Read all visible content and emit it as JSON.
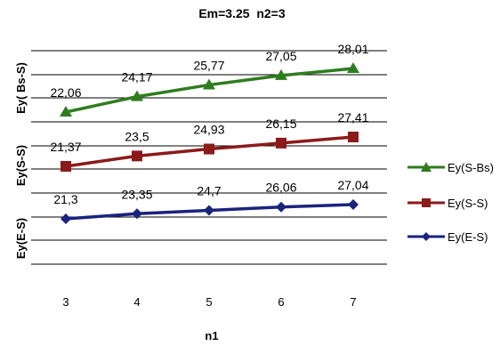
{
  "chart_data": {
    "type": "line",
    "title": "Em=3.25  n2=3",
    "xlabel": "n1",
    "ylabels": [
      "Ey( Bs-S)",
      "Ey(S-S)",
      "Ey(E-S)"
    ],
    "x": [
      3,
      4,
      5,
      6,
      7
    ],
    "series": [
      {
        "name": "Ey(S-Bs)",
        "values": [
          22.06,
          24.17,
          25.77,
          27.05,
          28.01
        ],
        "labels": [
          "22,06",
          "24,17",
          "25,77",
          "27,05",
          "28,01"
        ],
        "color": "#2e7d1f",
        "marker": "triangle"
      },
      {
        "name": "Ey(S-S)",
        "values": [
          21.37,
          23.5,
          24.93,
          26.15,
          27.41
        ],
        "labels": [
          "21,37",
          "23,5",
          "24,93",
          "26,15",
          "27,41"
        ],
        "color": "#8b1a1a",
        "marker": "square"
      },
      {
        "name": "Ey(E-S)",
        "values": [
          21.3,
          23.35,
          24.7,
          26.06,
          27.04
        ],
        "labels": [
          "21,3",
          "23,35",
          "24,7",
          "26,06",
          "27,04"
        ],
        "color": "#1a237e",
        "marker": "diamond"
      }
    ],
    "grid": true,
    "legend": "right"
  }
}
